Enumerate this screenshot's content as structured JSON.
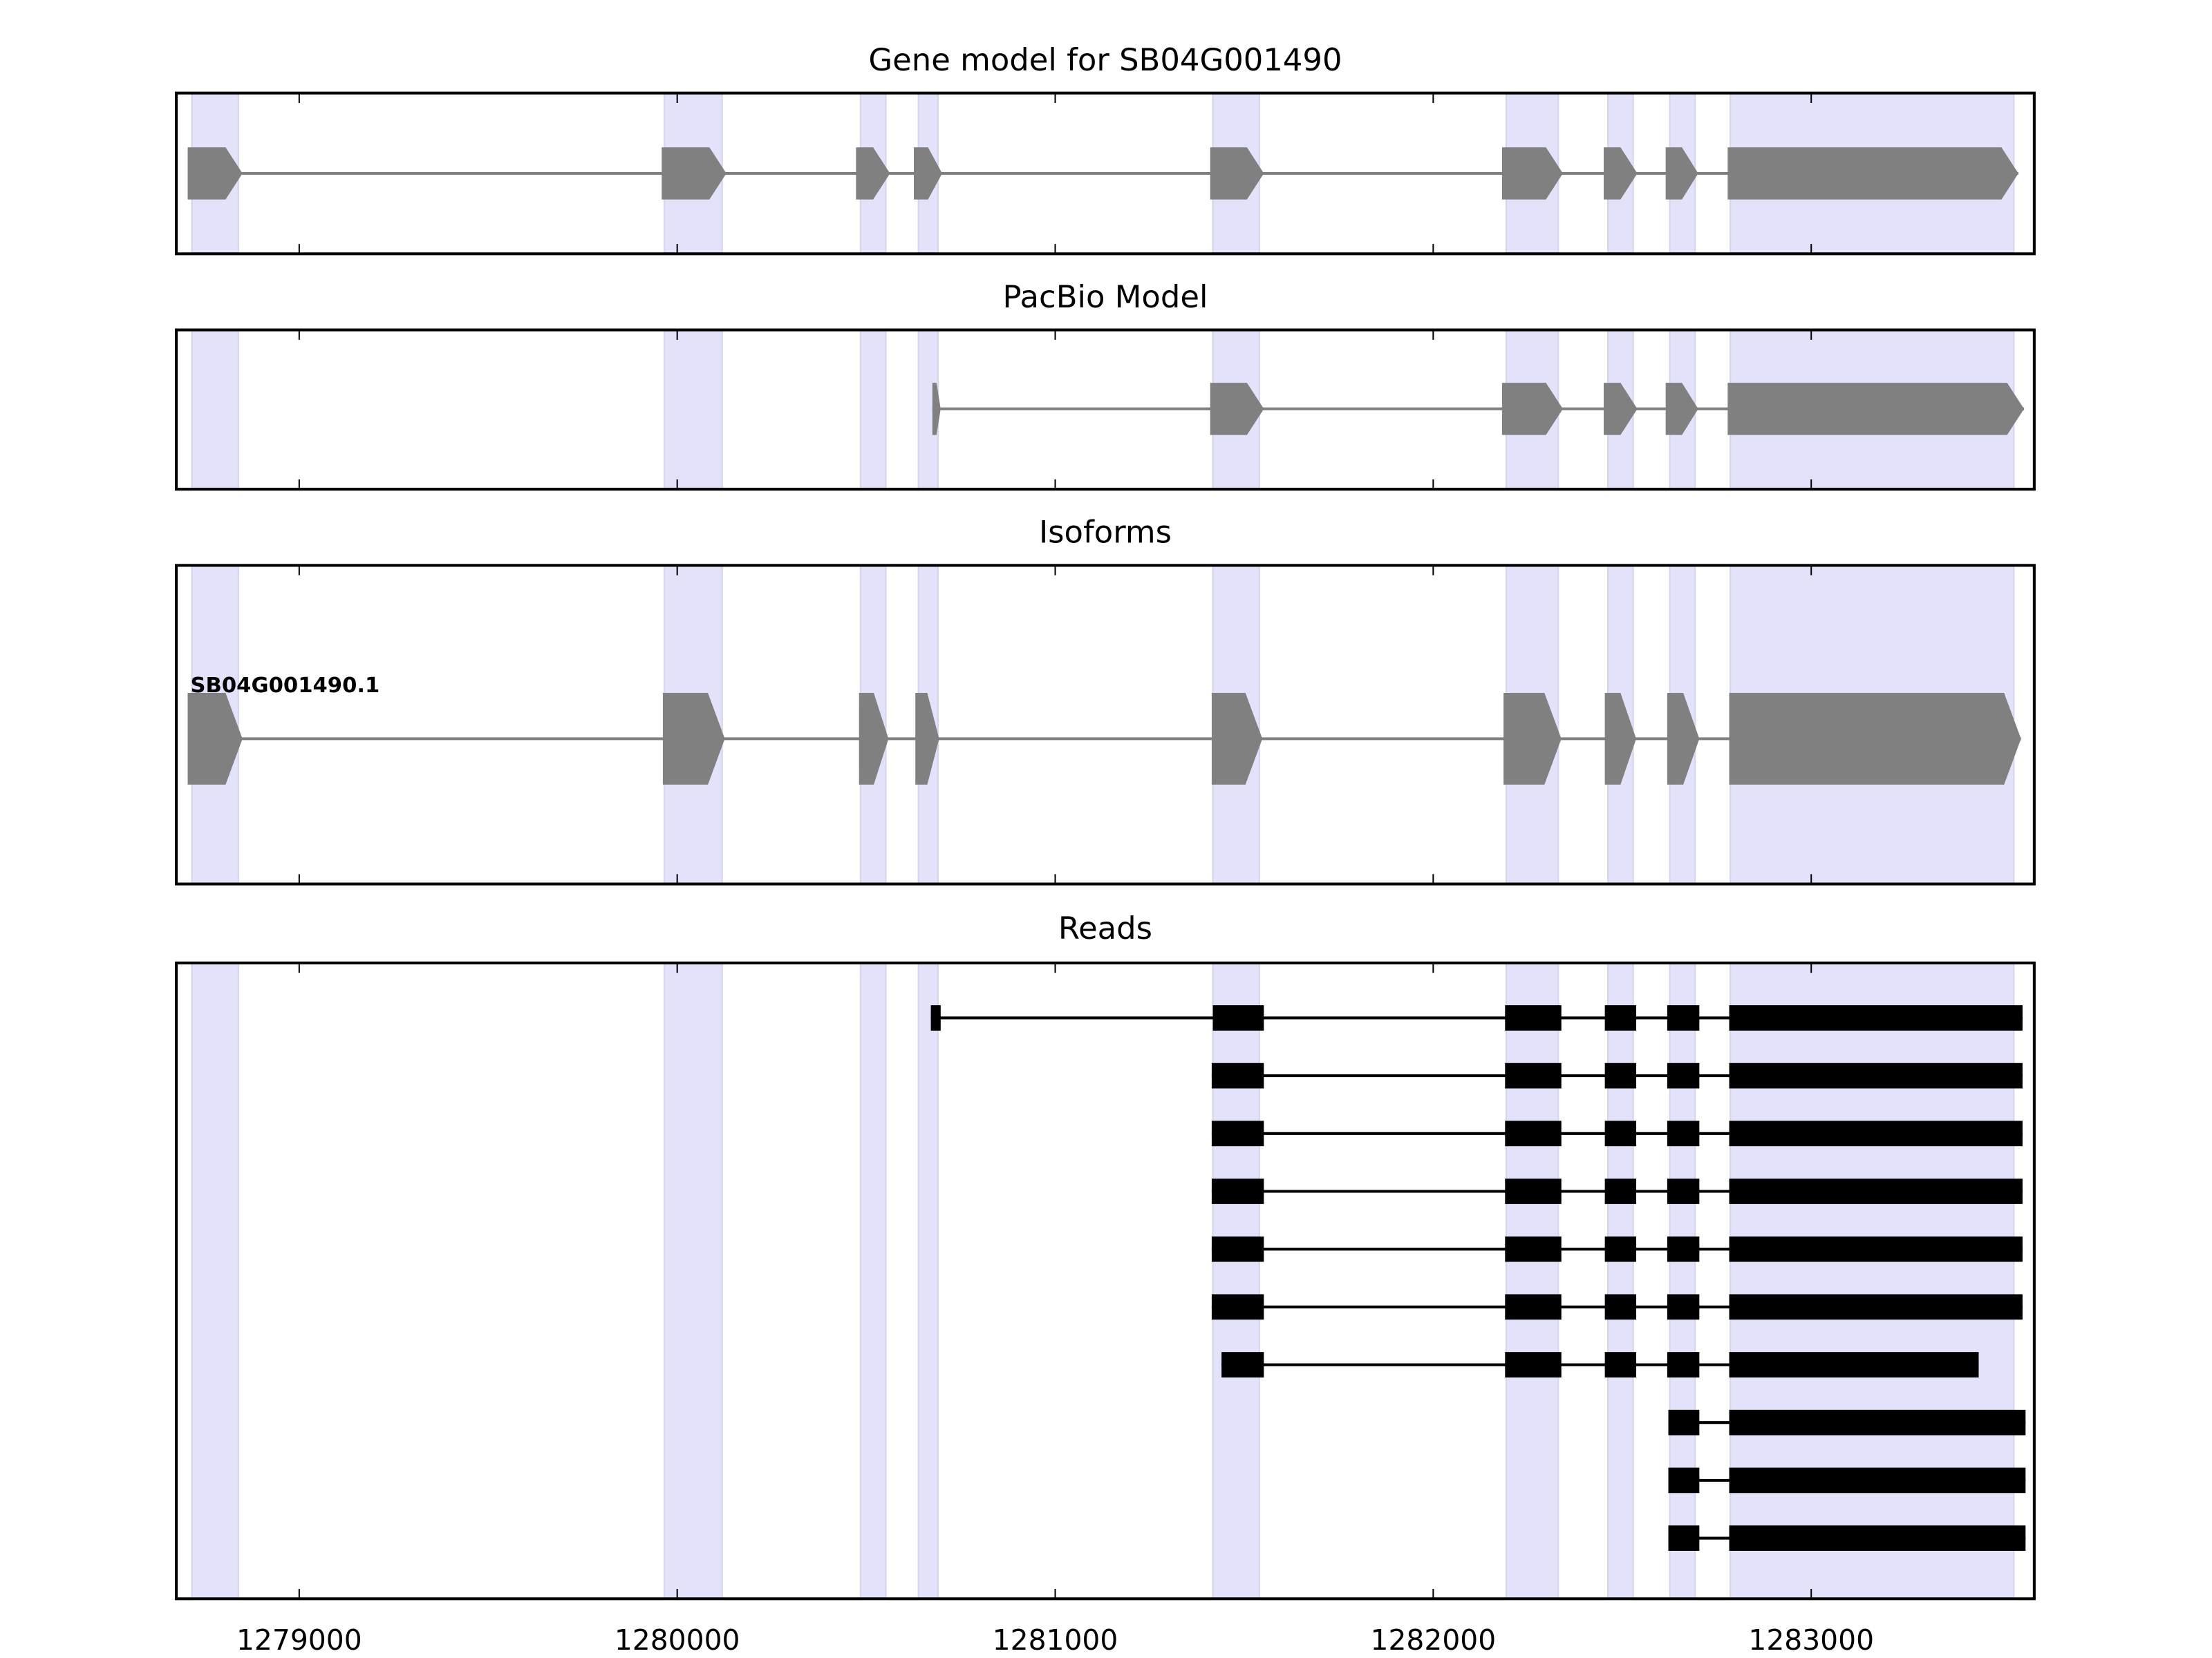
{
  "chart_data": {
    "type": "gene-structure",
    "xlim": [
      1278675,
      1283590
    ],
    "xticks": [
      1279000,
      1280000,
      1281000,
      1282000,
      1283000
    ],
    "shade_color": "#e2e2fb",
    "shaded_regions": [
      [
        1278716,
        1278839
      ],
      [
        1279966,
        1280119
      ],
      [
        1280485,
        1280552
      ],
      [
        1280638,
        1280690
      ],
      [
        1281417,
        1281540
      ],
      [
        1282193,
        1282331
      ],
      [
        1282462,
        1282529
      ],
      [
        1282626,
        1282693
      ],
      [
        1282786,
        1283536
      ]
    ],
    "panels": [
      {
        "title": "Gene model for SB04G001490",
        "kind": "arrows",
        "color": "#808080",
        "tracks": [
          {
            "label": "",
            "exons": [
              [
                1278705,
                1278850
              ],
              [
                1279959,
                1280130
              ],
              [
                1280473,
                1280563
              ],
              [
                1280626,
                1280701
              ],
              [
                1281410,
                1281552
              ],
              [
                1282182,
                1282343
              ],
              [
                1282451,
                1282540
              ],
              [
                1282615,
                1282701
              ],
              [
                1282779,
                1283548
              ]
            ]
          }
        ]
      },
      {
        "title": "PacBio Model",
        "kind": "arrows",
        "color": "#808080",
        "tracks": [
          {
            "label": "",
            "exons": [
              [
                1280675,
                1280697
              ],
              [
                1281410,
                1281552
              ],
              [
                1282182,
                1282343
              ],
              [
                1282451,
                1282540
              ],
              [
                1282615,
                1282701
              ],
              [
                1282779,
                1283563
              ]
            ]
          }
        ]
      },
      {
        "title": "Isoforms",
        "kind": "arrows",
        "color": "#808080",
        "tracks": [
          {
            "label": "SB04G001490.1",
            "exons": [
              [
                1278705,
                1278850
              ],
              [
                1279962,
                1280126
              ],
              [
                1280481,
                1280559
              ],
              [
                1280630,
                1280693
              ],
              [
                1281414,
                1281548
              ],
              [
                1282186,
                1282339
              ],
              [
                1282454,
                1282537
              ],
              [
                1282619,
                1282704
              ],
              [
                1282783,
                1283555
              ]
            ]
          }
        ]
      },
      {
        "title": "Reads",
        "kind": "blocks",
        "color": "#000000",
        "tracks": [
          {
            "label": "",
            "exons": [
              [
                1280671,
                1280697
              ],
              [
                1281417,
                1281552
              ],
              [
                1282190,
                1282339
              ],
              [
                1282454,
                1282537
              ],
              [
                1282619,
                1282704
              ],
              [
                1282783,
                1283559
              ]
            ]
          },
          {
            "label": "",
            "exons": [
              [
                1281414,
                1281552
              ],
              [
                1282190,
                1282339
              ],
              [
                1282454,
                1282537
              ],
              [
                1282619,
                1282704
              ],
              [
                1282783,
                1283559
              ]
            ]
          },
          {
            "label": "",
            "exons": [
              [
                1281414,
                1281552
              ],
              [
                1282190,
                1282339
              ],
              [
                1282454,
                1282537
              ],
              [
                1282619,
                1282704
              ],
              [
                1282783,
                1283559
              ]
            ]
          },
          {
            "label": "",
            "exons": [
              [
                1281414,
                1281552
              ],
              [
                1282190,
                1282339
              ],
              [
                1282454,
                1282537
              ],
              [
                1282619,
                1282704
              ],
              [
                1282783,
                1283559
              ]
            ]
          },
          {
            "label": "",
            "exons": [
              [
                1281414,
                1281552
              ],
              [
                1282190,
                1282339
              ],
              [
                1282454,
                1282537
              ],
              [
                1282619,
                1282704
              ],
              [
                1282783,
                1283559
              ]
            ]
          },
          {
            "label": "",
            "exons": [
              [
                1281414,
                1281552
              ],
              [
                1282190,
                1282339
              ],
              [
                1282454,
                1282537
              ],
              [
                1282619,
                1282704
              ],
              [
                1282783,
                1283559
              ]
            ]
          },
          {
            "label": "",
            "exons": [
              [
                1281440,
                1281552
              ],
              [
                1282190,
                1282339
              ],
              [
                1282454,
                1282537
              ],
              [
                1282619,
                1282704
              ],
              [
                1282783,
                1283443
              ]
            ]
          },
          {
            "label": "",
            "exons": [
              [
                1282622,
                1282704
              ],
              [
                1282783,
                1283567
              ]
            ]
          },
          {
            "label": "",
            "exons": [
              [
                1282622,
                1282704
              ],
              [
                1282783,
                1283567
              ]
            ]
          },
          {
            "label": "",
            "exons": [
              [
                1282622,
                1282704
              ],
              [
                1282783,
                1283567
              ]
            ]
          }
        ]
      }
    ]
  }
}
